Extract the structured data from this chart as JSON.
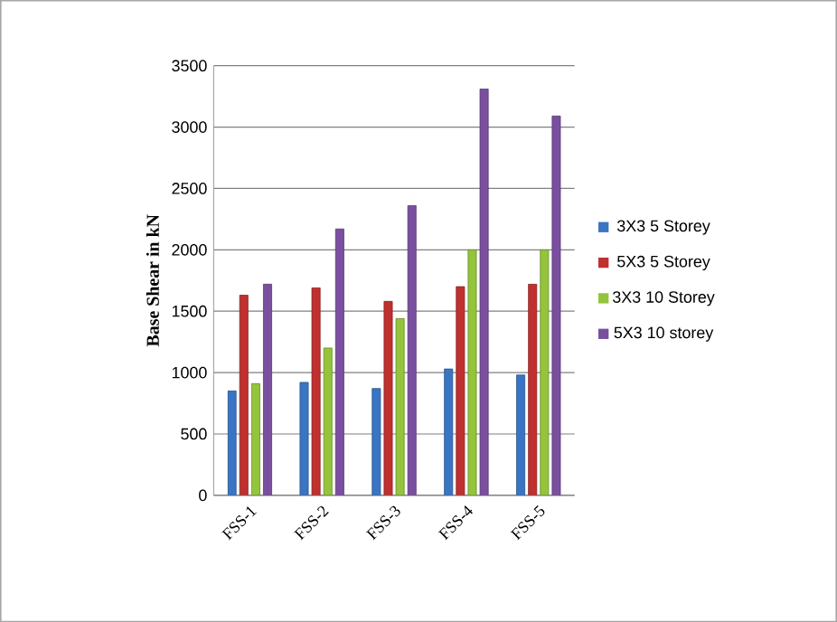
{
  "chart_data": {
    "type": "bar",
    "ylabel": "Base Shear in kN",
    "categories": [
      "FSS-1",
      "FSS-2",
      "FSS-3",
      "FSS-4",
      "FSS-5"
    ],
    "series": [
      {
        "name": "3X3 5 Storey",
        "color": "#3a75c4",
        "values": [
          850,
          920,
          870,
          1030,
          980
        ]
      },
      {
        "name": "5X3 5 Storey",
        "color": "#c0302e",
        "values": [
          1630,
          1690,
          1580,
          1700,
          1720
        ]
      },
      {
        "name": "3X3 10 Storey",
        "color": "#94c43c",
        "values": [
          910,
          1200,
          1440,
          2000,
          2000
        ]
      },
      {
        "name": "5X3 10 storey",
        "color": "#7b4fa0",
        "values": [
          1720,
          2170,
          2360,
          3310,
          3090
        ]
      }
    ],
    "ylim": [
      0,
      3500
    ],
    "yticks": [
      0,
      500,
      1000,
      1500,
      2000,
      2500,
      3000,
      3500
    ],
    "grid": "y",
    "legend": "right"
  }
}
